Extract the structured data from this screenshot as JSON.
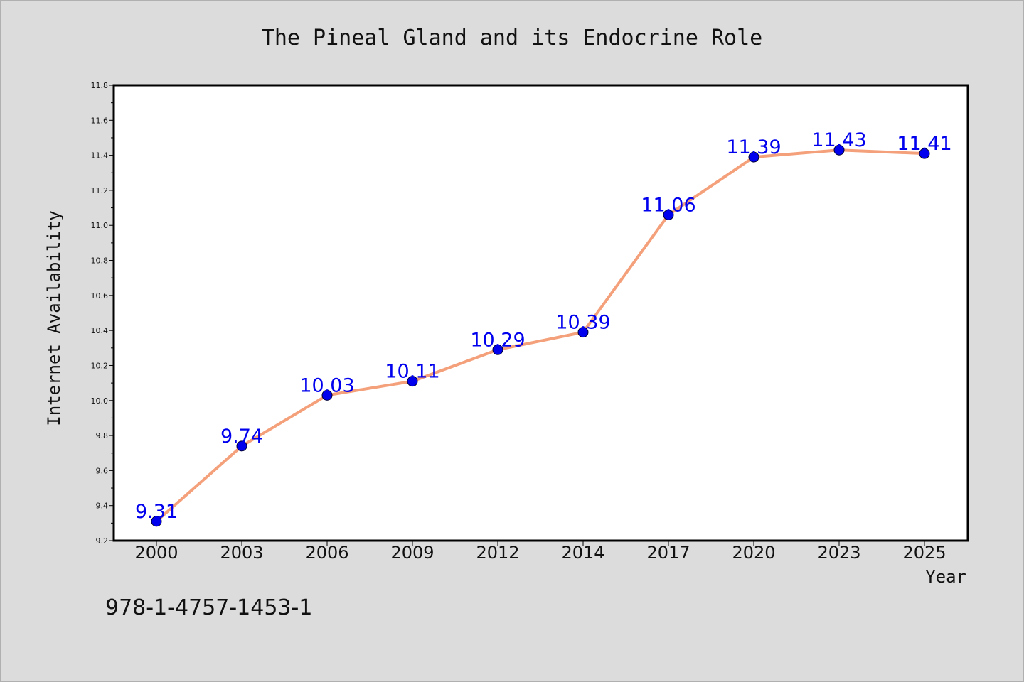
{
  "chart_data": {
    "type": "line",
    "title": "The Pineal Gland and its Endocrine Role",
    "xlabel": "Year",
    "ylabel": "Internet Availability",
    "categories": [
      "2000",
      "2003",
      "2006",
      "2009",
      "2012",
      "2014",
      "2017",
      "2020",
      "2023",
      "2025"
    ],
    "series": [
      {
        "values": [
          9.31,
          9.74,
          10.03,
          10.11,
          10.29,
          10.39,
          11.06,
          11.39,
          11.43,
          11.41
        ],
        "labels": [
          "9.31",
          "9.74",
          "10.03",
          "10.11",
          "10.29",
          "10.39",
          "11.06",
          "11.39",
          "11.43",
          "11.41"
        ],
        "line_color": "#f4a07a",
        "marker_color": "#0000ee"
      }
    ],
    "ylim": [
      9.2,
      11.8
    ],
    "yticks": [
      "9.2",
      "9.4",
      "9.6",
      "9.8",
      "10.0",
      "10.2",
      "10.4",
      "10.6",
      "10.8",
      "11.0",
      "11.2",
      "11.4",
      "11.6",
      "11.8"
    ],
    "grid": false,
    "legend": "none"
  },
  "footer": {
    "isbn": "978-1-4757-1453-1"
  }
}
